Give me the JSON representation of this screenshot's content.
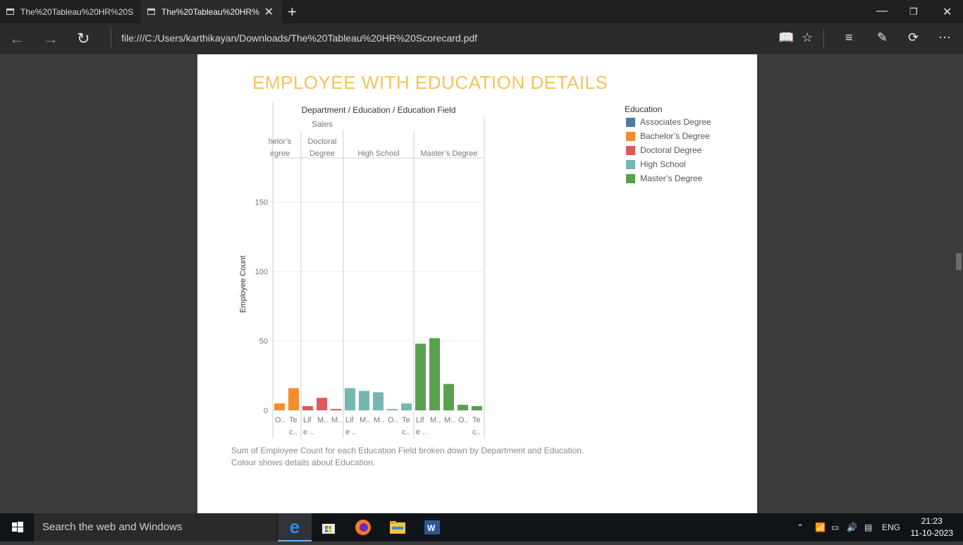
{
  "browser": {
    "tabs": [
      {
        "title": "The%20Tableau%20HR%20S"
      },
      {
        "title": "The%20Tableau%20HR%"
      }
    ],
    "url": "file:///C:/Users/karthikayan/Downloads/The%20Tableau%20HR%20Scorecard.pdf"
  },
  "pdf": {
    "title": "EMPLOYEE WITH EDUCATION DETAILS",
    "caption_line1": "Sum of Employee Count for each Education Field broken down by Department and Education.",
    "caption_line2": "Colour shows details about Education.",
    "legend_title": "Education",
    "legend": [
      {
        "label": "Associates Degree",
        "color": "#4e79a7"
      },
      {
        "label": "Bachelor’s Degree",
        "color": "#f28e2b"
      },
      {
        "label": "Doctoral Degree",
        "color": "#e15759"
      },
      {
        "label": "High School",
        "color": "#76b7b2"
      },
      {
        "label": "Master’s Degree",
        "color": "#59a14f"
      }
    ]
  },
  "chart_data": {
    "type": "bar",
    "header": "Department / Education / Education Field",
    "department": "Sales",
    "ylabel": "Employee Count",
    "yticks": [
      "0",
      "50",
      "100",
      "150"
    ],
    "ylim": [
      0,
      180
    ],
    "groups": [
      {
        "label_line1": "helor’s",
        "label_line2": "egree",
        "color": "#f28e2b",
        "bars": [
          {
            "label1": "O..",
            "label2": "",
            "value": 5
          },
          {
            "label1": "Te",
            "label2": "c..",
            "value": 16
          }
        ]
      },
      {
        "label_line1": "Doctoral",
        "label_line2": "Degree",
        "color": "#e15759",
        "bars": [
          {
            "label1": "Lif",
            "label2": "e ..",
            "value": 3
          },
          {
            "label1": "M..",
            "label2": "",
            "value": 9
          },
          {
            "label1": "M..",
            "label2": "",
            "value": 1
          }
        ]
      },
      {
        "label_line1": "High School",
        "label_line2": "",
        "color": "#76b7b2",
        "bars": [
          {
            "label1": "Lif",
            "label2": "e ..",
            "value": 16
          },
          {
            "label1": "M..",
            "label2": "",
            "value": 14
          },
          {
            "label1": "M..",
            "label2": "",
            "value": 13
          },
          {
            "label1": "O..",
            "label2": "",
            "value": 1
          },
          {
            "label1": "Te",
            "label2": "c..",
            "value": 5
          }
        ]
      },
      {
        "label_line1": "Master’s Degree",
        "label_line2": "",
        "color": "#59a14f",
        "bars": [
          {
            "label1": "Lif",
            "label2": "e ..",
            "value": 48
          },
          {
            "label1": "M..",
            "label2": "",
            "value": 52
          },
          {
            "label1": "M..",
            "label2": "",
            "value": 19
          },
          {
            "label1": "O..",
            "label2": "",
            "value": 4
          },
          {
            "label1": "Te",
            "label2": "c..",
            "value": 3
          }
        ]
      }
    ]
  },
  "taskbar": {
    "search_placeholder": "Search the web and Windows",
    "language": "ENG",
    "time": "21:23",
    "date": "11-10-2023"
  }
}
